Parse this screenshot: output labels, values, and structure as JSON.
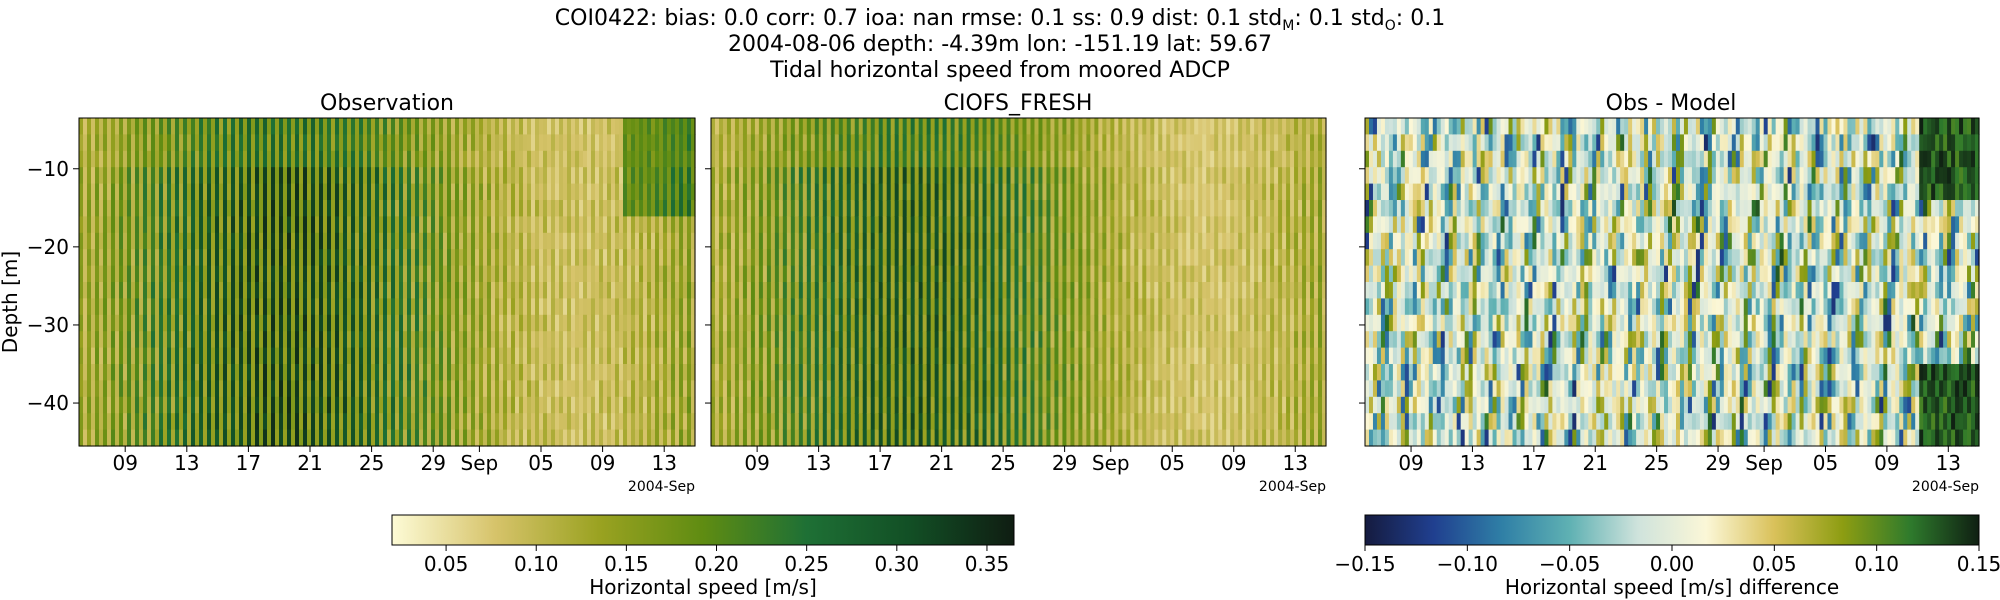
{
  "chart_data": {
    "type": "heatmap",
    "title_lines": [
      "COI0422: bias: 0.0  corr: 0.7  ioa: nan  rmse: 0.1  ss: 0.9  dist: 0.1  std",
      "2004-08-06 depth: -4.39m lon: -151.19 lat: 59.67",
      "Tidal horizontal speed from moored ADCP"
    ],
    "title_stats": {
      "std_m_label": "std",
      "std_m_sub": "M",
      "std_m_value": ": 0.1  std",
      "std_o_sub": "O",
      "std_o_value": ": 0.1"
    },
    "ylabel": "Depth [m]",
    "ylim": [
      -45.5,
      -3.5
    ],
    "yticks": [
      -10,
      -20,
      -30,
      -40
    ],
    "xlim_days": [
      "2004-08-06",
      "2004-09-15"
    ],
    "xticks": [
      "09",
      "13",
      "17",
      "21",
      "25",
      "29",
      "Sep",
      "05",
      "09",
      "13"
    ],
    "x_offset_label": "2004-Sep",
    "panels": [
      {
        "title": "Observation",
        "colormap": "speed"
      },
      {
        "title": "CIOFS_FRESH",
        "colormap": "speed"
      },
      {
        "title": "Obs - Model",
        "colormap": "diff"
      }
    ],
    "colorbars": [
      {
        "label": "Horizontal speed [m/s]",
        "range": [
          0.02,
          0.365
        ],
        "ticks": [
          "0.05",
          "0.10",
          "0.15",
          "0.20",
          "0.25",
          "0.30",
          "0.35"
        ]
      },
      {
        "label": "Horizontal speed [m/s] difference",
        "range": [
          -0.15,
          0.15
        ],
        "ticks": [
          "−0.15",
          "−0.10",
          "−0.05",
          "0.00",
          "0.05",
          "0.10",
          "0.15"
        ]
      }
    ],
    "colors": {
      "speed": [
        "#fdfbd6",
        "#d6c36a",
        "#9aa221",
        "#5f8c12",
        "#1e7035",
        "#124f25",
        "#0f1d12"
      ],
      "diff": [
        "#151b3f",
        "#203f8f",
        "#2f7fa6",
        "#5fb1b3",
        "#cfe3dc",
        "#fbf7d7",
        "#d9c15a",
        "#8d9d12",
        "#2e7a2c",
        "#0f1f12"
      ]
    }
  }
}
